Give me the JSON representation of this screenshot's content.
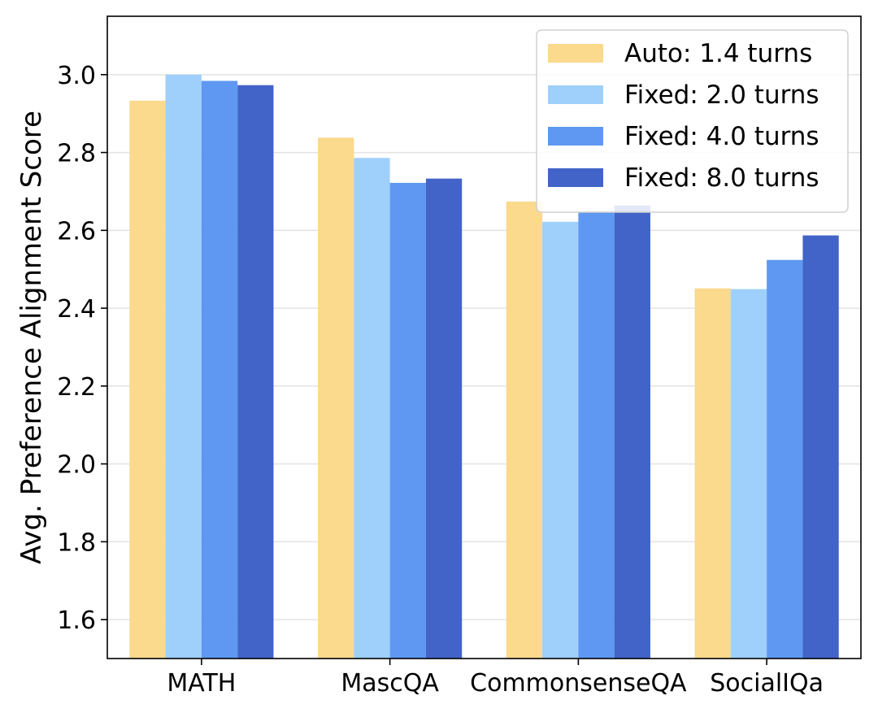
{
  "chart_data": {
    "type": "bar",
    "title": "",
    "xlabel": "",
    "ylabel": "Avg. Preference Alignment Score",
    "ylim": [
      1.5,
      3.15
    ],
    "yticks": [
      1.6,
      1.8,
      2.0,
      2.2,
      2.4,
      2.6,
      2.8,
      3.0
    ],
    "ytick_labels": [
      "1.6",
      "1.8",
      "2.0",
      "2.2",
      "2.4",
      "2.6",
      "2.8",
      "3.0"
    ],
    "grid": "y",
    "legend_position": "top-right",
    "categories": [
      "MATH",
      "MascQA",
      "CommonsenseQA",
      "SocialIQa"
    ],
    "series": [
      {
        "name": "Auto: 1.4 turns",
        "color": "#FBD98D",
        "values": [
          2.933,
          2.838,
          2.674,
          2.451
        ]
      },
      {
        "name": "Fixed: 2.0 turns",
        "color": "#9ED0FB",
        "values": [
          3.0,
          2.786,
          2.622,
          2.449
        ]
      },
      {
        "name": "Fixed: 4.0 turns",
        "color": "#5F98F2",
        "values": [
          2.984,
          2.722,
          2.646,
          2.524
        ]
      },
      {
        "name": "Fixed: 8.0 turns",
        "color": "#4264C8",
        "values": [
          2.973,
          2.733,
          2.664,
          2.587
        ]
      }
    ]
  }
}
